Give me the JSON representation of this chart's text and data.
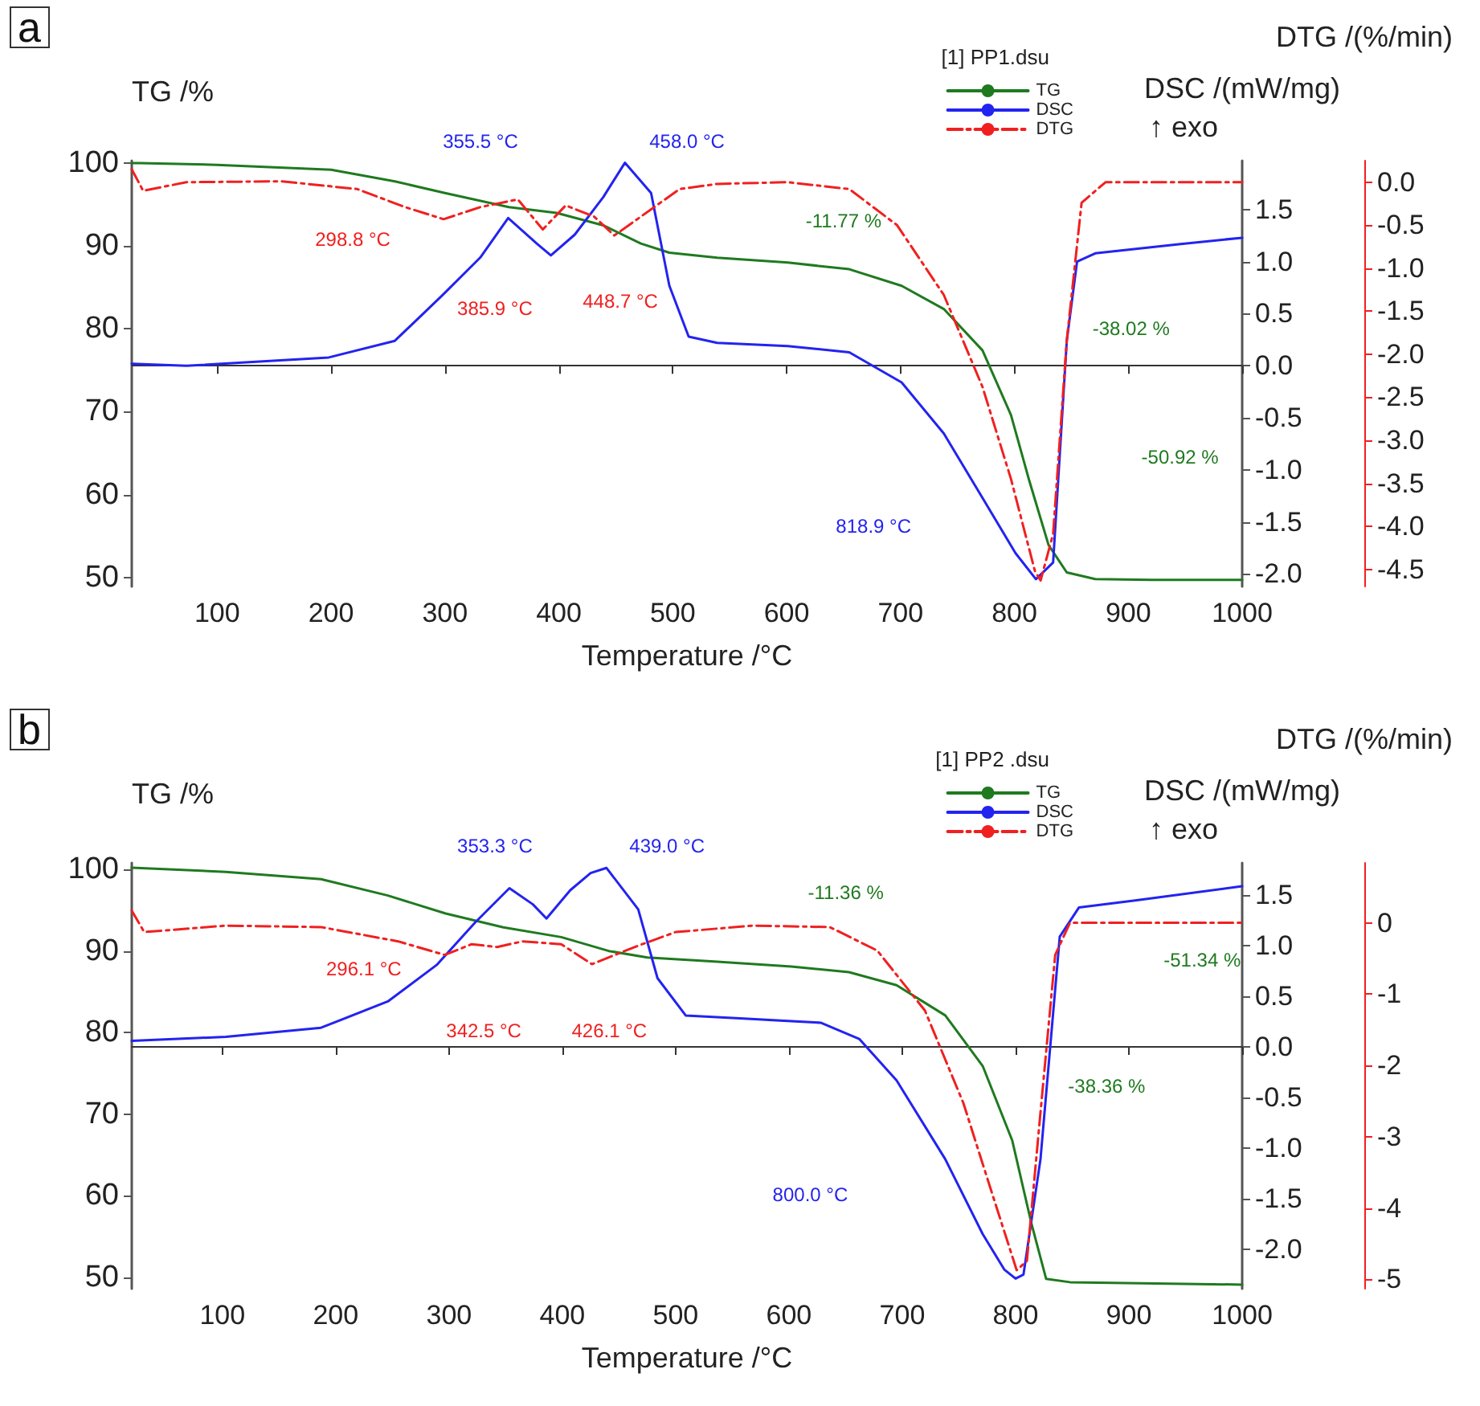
{
  "chart_data": [
    {
      "type": "line",
      "title": "a",
      "xlabel": "Temperature /°C",
      "ylabel": "TG /%",
      "y2label": "DSC /(mW/mg)",
      "y3label": "DTG /(%/min)",
      "legend_title": "[1] PP1.dsu",
      "legend": "top right",
      "marker": "none",
      "xlim": [
        25,
        1000
      ],
      "xticks": [
        100,
        200,
        300,
        400,
        500,
        600,
        700,
        800,
        900,
        1000
      ],
      "ylim": [
        48.9,
        100.3
      ],
      "yticks": [
        50,
        60,
        70,
        80,
        90,
        100
      ],
      "y2lim": [
        -2.12,
        1.97
      ],
      "y2ticks": [
        {
          "value": -2,
          "label": "-2.0"
        },
        {
          "value": -1.5,
          "label": "-1.5"
        },
        {
          "value": -1,
          "label": "-1.0"
        },
        {
          "value": -0.5,
          "label": "-0.5"
        },
        {
          "value": 0,
          "label": "0.0"
        },
        {
          "value": 0.5,
          "label": "0.5"
        },
        {
          "value": 1,
          "label": "1.0"
        },
        {
          "value": 1.5,
          "label": "1.5"
        }
      ],
      "y3lim": [
        -4.7,
        0.25
      ],
      "y3ticks": [
        {
          "value": -4.5,
          "label": "-4.5"
        },
        {
          "value": -4,
          "label": "-4.0"
        },
        {
          "value": -3.5,
          "label": "-3.5"
        },
        {
          "value": -3,
          "label": "-3.0"
        },
        {
          "value": -2.5,
          "label": "-2.5"
        },
        {
          "value": -2,
          "label": "-2.0"
        },
        {
          "value": -1.5,
          "label": "-1.5"
        },
        {
          "value": -1,
          "label": "-1.0"
        },
        {
          "value": -0.5,
          "label": "-0.5"
        },
        {
          "value": 0,
          "label": "0.0"
        }
      ],
      "annotations": [
        "↑ exo",
        "-11.77 %",
        "-38.02 %",
        "-50.92 %",
        "355.5 °C",
        "458.0 °C",
        "818.9 °C",
        "298.8 °C",
        "385.9 °C",
        "448.7 °C"
      ],
      "series": [
        {
          "name": "TG",
          "color": "#1f7a1f",
          "line_style": "solid",
          "axis": "y",
          "x": [
            25,
            32,
            100,
            200,
            256,
            300,
            356,
            398,
            439,
            472,
            497,
            539,
            601,
            655,
            701,
            738,
            772,
            797,
            813,
            830,
            846,
            871,
            920,
            1000
          ],
          "values": [
            100,
            100,
            99.8,
            99.2,
            97.8,
            96.4,
            94.7,
            94,
            92.5,
            90.3,
            89.2,
            88.6,
            88,
            87.2,
            85.2,
            82.4,
            77.4,
            69.6,
            61.7,
            53.9,
            50.6,
            49.8,
            49.7,
            49.7
          ]
        },
        {
          "name": "DSC",
          "color": "#2323f0",
          "line_style": "solid",
          "axis": "y2",
          "x": [
            25,
            73,
            198,
            256,
            298,
            331,
            355.5,
            381,
            393,
            414,
            439,
            458.0,
            481,
            497,
            514,
            539,
            601,
            655,
            701,
            738,
            772,
            801,
            818.9,
            834,
            846,
            855,
            871,
            946,
            1000
          ],
          "values": [
            0.02,
            0,
            0.08,
            0.24,
            0.68,
            1.04,
            1.42,
            1.17,
            1.06,
            1.26,
            1.62,
            1.95,
            1.66,
            0.77,
            0.28,
            0.22,
            0.19,
            0.13,
            -0.16,
            -0.65,
            -1.27,
            -1.8,
            -2.05,
            -1.89,
            0.24,
            1.0,
            1.08,
            1.17,
            1.23
          ]
        },
        {
          "name": "DTG",
          "color": "#f02020",
          "line_style": "dashed",
          "axis": "y3",
          "x": [
            25,
            35,
            73,
            157,
            223,
            265,
            298.8,
            331,
            364,
            385.9,
            406,
            431,
            448.7,
            472,
            506,
            539,
            601,
            655,
            697,
            738,
            772,
            797,
            818,
            823,
            834,
            846,
            859,
            880,
            1000
          ],
          "values": [
            0.15,
            -0.1,
            0,
            0.01,
            -0.08,
            -0.29,
            -0.43,
            -0.29,
            -0.2,
            -0.55,
            -0.27,
            -0.4,
            -0.62,
            -0.4,
            -0.08,
            -0.02,
            0,
            -0.08,
            -0.5,
            -1.31,
            -2.38,
            -3.45,
            -4.52,
            -4.63,
            -4.09,
            -1.84,
            -0.24,
            0,
            0
          ]
        }
      ]
    },
    {
      "type": "line",
      "title": "b",
      "xlabel": "Temperature /°C",
      "ylabel": "TG /%",
      "y2label": "DSC /(mW/mg)",
      "y3label": "DTG /(%/min)",
      "legend_title": "[1] PP2 .dsu",
      "legend": "top right",
      "marker": "none",
      "xlim": [
        20,
        1000
      ],
      "xticks": [
        100,
        200,
        300,
        400,
        500,
        600,
        700,
        800,
        900,
        1000
      ],
      "ylim": [
        48.6,
        100.8
      ],
      "yticks": [
        50,
        60,
        70,
        80,
        90,
        100
      ],
      "y2lim": [
        -2.39,
        1.82
      ],
      "y2ticks": [
        {
          "value": -2,
          "label": "-2.0"
        },
        {
          "value": -1.5,
          "label": "-1.5"
        },
        {
          "value": -1,
          "label": "-1.0"
        },
        {
          "value": -0.5,
          "label": "-0.5"
        },
        {
          "value": 0,
          "label": "0.0"
        },
        {
          "value": 0.5,
          "label": "0.5"
        },
        {
          "value": 1,
          "label": "1.0"
        },
        {
          "value": 1.5,
          "label": "1.5"
        }
      ],
      "y3lim": [
        -5.13,
        0.84
      ],
      "y3ticks": [
        -5,
        -4,
        -3,
        -2,
        -1,
        0
      ],
      "annotations": [
        "↑ exo",
        "-11.36 %",
        "-51.34 %",
        "-38.36 %",
        "353.3 °C",
        "439.0 °C",
        "800.0 °C",
        "296.1 °C",
        "342.5 °C",
        "426.1 °C"
      ],
      "series": [
        {
          "name": "TG",
          "color": "#1f7a1f",
          "line_style": "solid",
          "axis": "y",
          "x": [
            20,
            103,
            187,
            246,
            297,
            348,
            399,
            441,
            475,
            534,
            602,
            653,
            695,
            738,
            771,
            797,
            814,
            827,
            848,
            1000
          ],
          "values": [
            100.2,
            99.7,
            98.8,
            96.8,
            94.6,
            92.9,
            91.7,
            90,
            89.2,
            88.7,
            88.1,
            87.4,
            85.8,
            82.1,
            75.9,
            66.8,
            56.6,
            49.8,
            49.4,
            49.1
          ]
        },
        {
          "name": "DSC",
          "color": "#2323f0",
          "line_style": "solid",
          "axis": "y2",
          "x": [
            20,
            103,
            187,
            246,
            289,
            323,
            353.3,
            374,
            386,
            407,
            425,
            439.0,
            467,
            484,
            509,
            560,
            628,
            662,
            695,
            738,
            771,
            790,
            800.0,
            807,
            822,
            839,
            856,
            907,
            1000
          ],
          "values": [
            0.06,
            0.1,
            0.19,
            0.45,
            0.81,
            1.23,
            1.57,
            1.41,
            1.27,
            1.55,
            1.72,
            1.77,
            1.36,
            0.68,
            0.31,
            0.28,
            0.24,
            0.08,
            -0.33,
            -1.11,
            -1.85,
            -2.2,
            -2.29,
            -2.25,
            -1.11,
            1.09,
            1.38,
            1.45,
            1.59
          ]
        },
        {
          "name": "DTG",
          "color": "#f02020",
          "line_style": "dashed",
          "axis": "y3",
          "x": [
            20,
            31,
            103,
            187,
            255,
            296.1,
            320,
            342.5,
            365,
            399,
            426.1,
            467,
            500,
            568,
            636,
            678,
            720,
            754,
            780,
            801,
            810,
            822,
            835,
            848,
            1000
          ],
          "values": [
            0.17,
            -0.13,
            -0.04,
            -0.06,
            -0.26,
            -0.45,
            -0.3,
            -0.34,
            -0.26,
            -0.3,
            -0.58,
            -0.32,
            -0.13,
            -0.04,
            -0.06,
            -0.39,
            -1.23,
            -2.53,
            -3.83,
            -4.87,
            -4.74,
            -2.66,
            -0.45,
            0,
            0
          ]
        }
      ]
    }
  ]
}
